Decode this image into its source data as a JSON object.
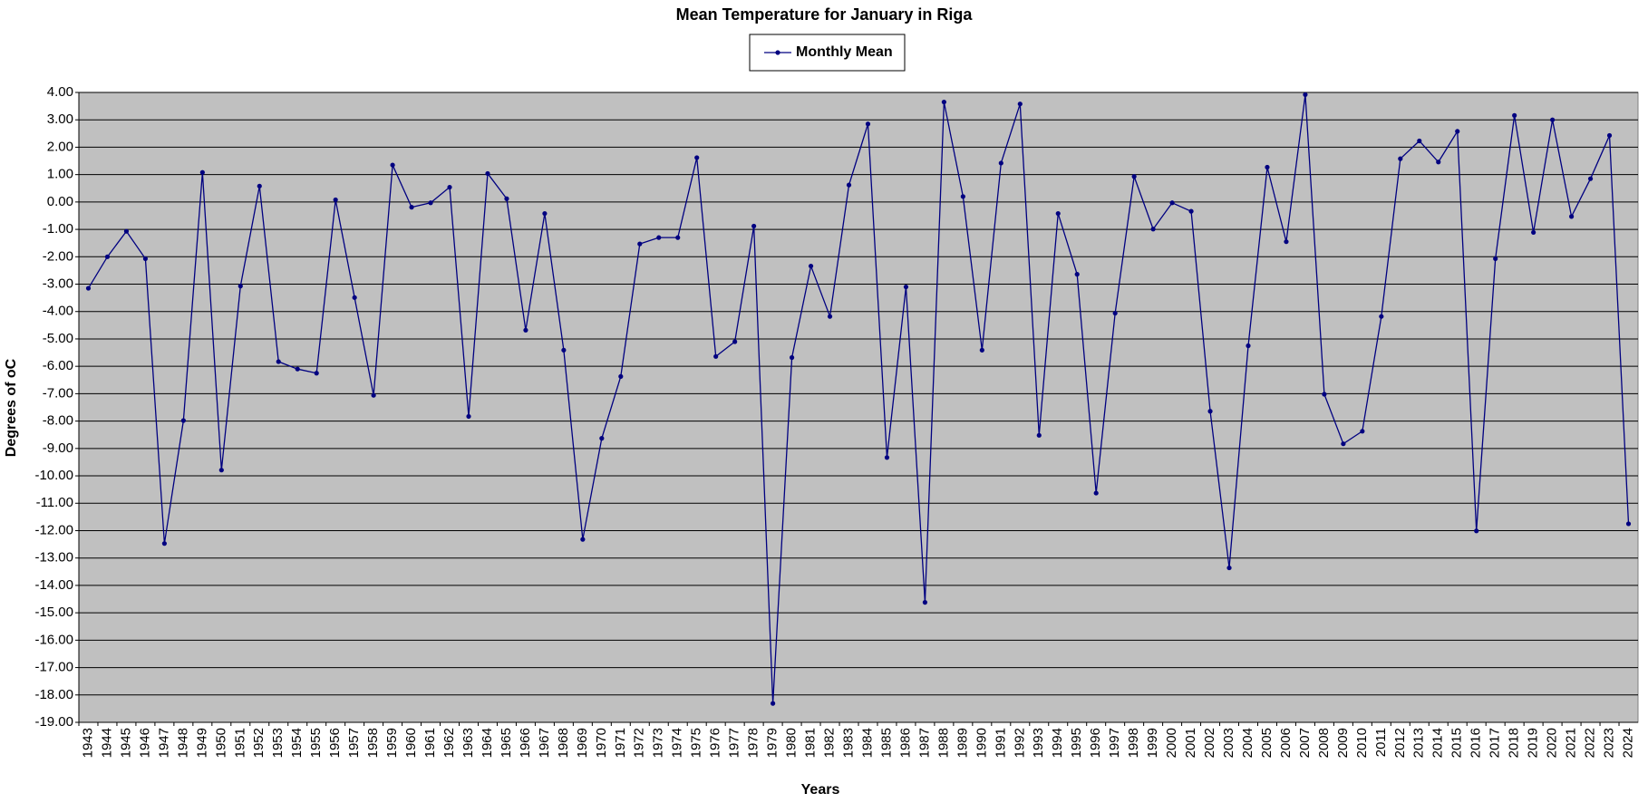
{
  "chart_data": {
    "type": "line",
    "title": "Mean Temperature for January in Riga",
    "x_label": "Years",
    "y_label": "Degrees of  oC",
    "categories": [
      "1943",
      "1944",
      "1945",
      "1946",
      "1947",
      "1948",
      "1949",
      "1950",
      "1951",
      "1952",
      "1953",
      "1954",
      "1955",
      "1956",
      "1957",
      "1958",
      "1959",
      "1960",
      "1961",
      "1962",
      "1963",
      "1964",
      "1965",
      "1966",
      "1967",
      "1968",
      "1969",
      "1970",
      "1971",
      "1972",
      "1973",
      "1974",
      "1975",
      "1976",
      "1977",
      "1978",
      "1979",
      "1980",
      "1981",
      "1982",
      "1983",
      "1984",
      "1985",
      "1986",
      "1987",
      "1988",
      "1989",
      "1990",
      "1991",
      "1992",
      "1993",
      "1994",
      "1995",
      "1996",
      "1997",
      "1998",
      "1999",
      "2000",
      "2001",
      "2002",
      "2003",
      "2004",
      "2005",
      "2006",
      "2007",
      "2008",
      "2009",
      "2010",
      "2011",
      "2012",
      "2013",
      "2014",
      "2015",
      "2016",
      "2017",
      "2018",
      "2019",
      "2020",
      "2021",
      "2022",
      "2023",
      "2024"
    ],
    "series": [
      {
        "name": "Monthly Mean",
        "color": "#000080",
        "values": [
          -3.15,
          -2.0,
          -1.07,
          -2.07,
          -12.47,
          -7.98,
          1.08,
          -9.79,
          -3.07,
          0.58,
          -5.83,
          -6.1,
          -6.25,
          0.08,
          -3.49,
          -7.06,
          1.35,
          -0.19,
          -0.03,
          0.54,
          -7.83,
          1.04,
          0.12,
          -4.68,
          -0.42,
          -5.41,
          -12.32,
          -8.63,
          -6.37,
          -1.53,
          -1.3,
          -1.3,
          1.62,
          -5.64,
          -5.1,
          -0.88,
          -18.31,
          -5.68,
          -2.34,
          -4.18,
          0.62,
          2.85,
          -9.33,
          -3.1,
          -14.62,
          3.65,
          0.2,
          -5.41,
          1.42,
          3.58,
          -8.52,
          -0.42,
          -2.64,
          -10.63,
          -4.06,
          0.93,
          -0.99,
          -0.03,
          -0.34,
          -7.64,
          -13.36,
          -5.25,
          1.27,
          -1.45,
          3.92,
          -7.02,
          -8.83,
          -8.37,
          -4.18,
          1.58,
          2.23,
          1.46,
          2.58,
          -12.01,
          -2.07,
          3.16,
          -1.11,
          3.0,
          -0.53,
          0.85,
          2.43,
          -11.75
        ]
      }
    ],
    "ylim": [
      -19,
      4
    ],
    "yticks": [
      {
        "value": 4,
        "label": "4.00"
      },
      {
        "value": 3,
        "label": "3.00"
      },
      {
        "value": 2,
        "label": "2.00"
      },
      {
        "value": 1,
        "label": "1.00"
      },
      {
        "value": 0,
        "label": "0.00"
      },
      {
        "value": -1,
        "label": "-1.00"
      },
      {
        "value": -2,
        "label": "-2.00"
      },
      {
        "value": -3,
        "label": "-3.00"
      },
      {
        "value": -4,
        "label": "-4.00"
      },
      {
        "value": -5,
        "label": "-5.00"
      },
      {
        "value": -6,
        "label": "-6.00"
      },
      {
        "value": -7,
        "label": "-7.00"
      },
      {
        "value": -8,
        "label": "-8.00"
      },
      {
        "value": -9,
        "label": "-9.00"
      },
      {
        "value": -10,
        "label": "-10.00"
      },
      {
        "value": -11,
        "label": "-11.00"
      },
      {
        "value": -12,
        "label": "-12.00"
      },
      {
        "value": -13,
        "label": "-13.00"
      },
      {
        "value": -14,
        "label": "-14.00"
      },
      {
        "value": -15,
        "label": "-15.00"
      },
      {
        "value": -16,
        "label": "-16.00"
      },
      {
        "value": -17,
        "label": "-17.00"
      },
      {
        "value": -18,
        "label": "-18.00"
      },
      {
        "value": -19,
        "label": "-19.00"
      }
    ],
    "grid": true,
    "plot_background": "#c0c0c0",
    "legend": "top"
  }
}
